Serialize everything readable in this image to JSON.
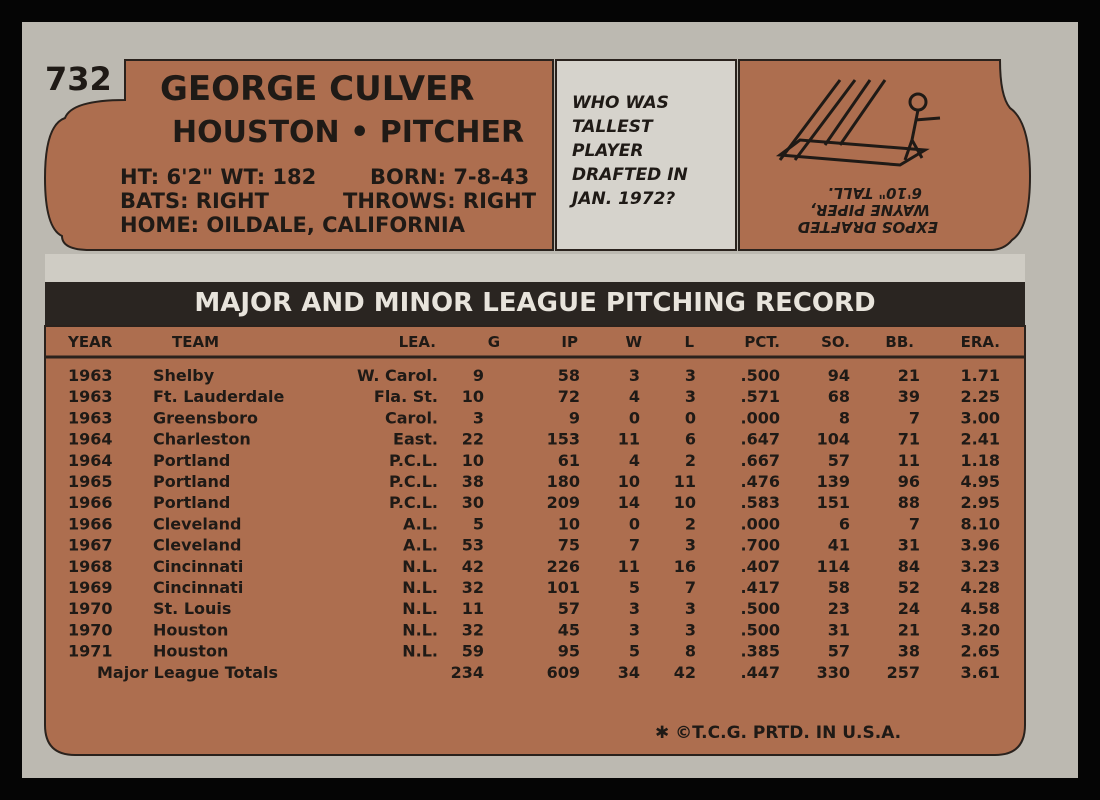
{
  "card": {
    "number": "732"
  },
  "header": {
    "name": "GEORGE CULVER",
    "team_position": "HOUSTON • PITCHER",
    "bio": {
      "height_weight": "HT: 6'2\" WT: 182",
      "born": "BORN: 7-8-43",
      "bats": "BATS: RIGHT",
      "throws": "THROWS: RIGHT",
      "home": "HOME: OILDALE, CALIFORNIA"
    }
  },
  "quiz": {
    "question": [
      "WHO WAS",
      "TALLEST",
      "PLAYER",
      "DRAFTED IN",
      "JAN. 1972?"
    ],
    "answer": [
      "EXPOS DRAFTED",
      "WAYNE PIPER,",
      "6'10\" TALL."
    ]
  },
  "table": {
    "title": "MAJOR AND MINOR LEAGUE PITCHING RECORD",
    "columns": [
      "YEAR",
      "TEAM",
      "LEA.",
      "G",
      "IP",
      "W",
      "L",
      "PCT.",
      "SO.",
      "BB.",
      "ERA."
    ],
    "rows": [
      [
        "1963",
        "Shelby",
        "W. Carol.",
        "9",
        "58",
        "3",
        "3",
        ".500",
        "94",
        "21",
        "1.71"
      ],
      [
        "1963",
        "Ft. Lauderdale",
        "Fla. St.",
        "10",
        "72",
        "4",
        "3",
        ".571",
        "68",
        "39",
        "2.25"
      ],
      [
        "1963",
        "Greensboro",
        "Carol.",
        "3",
        "9",
        "0",
        "0",
        ".000",
        "8",
        "7",
        "3.00"
      ],
      [
        "1964",
        "Charleston",
        "East.",
        "22",
        "153",
        "11",
        "6",
        ".647",
        "104",
        "71",
        "2.41"
      ],
      [
        "1964",
        "Portland",
        "P.C.L.",
        "10",
        "61",
        "4",
        "2",
        ".667",
        "57",
        "11",
        "1.18"
      ],
      [
        "1965",
        "Portland",
        "P.C.L.",
        "38",
        "180",
        "10",
        "11",
        ".476",
        "139",
        "96",
        "4.95"
      ],
      [
        "1966",
        "Portland",
        "P.C.L.",
        "30",
        "209",
        "14",
        "10",
        ".583",
        "151",
        "88",
        "2.95"
      ],
      [
        "1966",
        "Cleveland",
        "A.L.",
        "5",
        "10",
        "0",
        "2",
        ".000",
        "6",
        "7",
        "8.10"
      ],
      [
        "1967",
        "Cleveland",
        "A.L.",
        "53",
        "75",
        "7",
        "3",
        ".700",
        "41",
        "31",
        "3.96"
      ],
      [
        "1968",
        "Cincinnati",
        "N.L.",
        "42",
        "226",
        "11",
        "16",
        ".407",
        "114",
        "84",
        "3.23"
      ],
      [
        "1969",
        "Cincinnati",
        "N.L.",
        "32",
        "101",
        "5",
        "7",
        ".417",
        "58",
        "52",
        "4.28"
      ],
      [
        "1970",
        "St. Louis",
        "N.L.",
        "11",
        "57",
        "3",
        "3",
        ".500",
        "23",
        "24",
        "4.58"
      ],
      [
        "1970",
        "Houston",
        "N.L.",
        "32",
        "45",
        "3",
        "3",
        ".500",
        "31",
        "21",
        "3.20"
      ],
      [
        "1971",
        "Houston",
        "N.L.",
        "59",
        "95",
        "5",
        "8",
        ".385",
        "57",
        "38",
        "2.65"
      ]
    ],
    "totals": [
      "Major League Totals",
      "234",
      "609",
      "34",
      "42",
      ".447",
      "330",
      "257",
      "3.61"
    ]
  },
  "footer": "✱ ©T.C.G. PRTD. IN U.S.A."
}
